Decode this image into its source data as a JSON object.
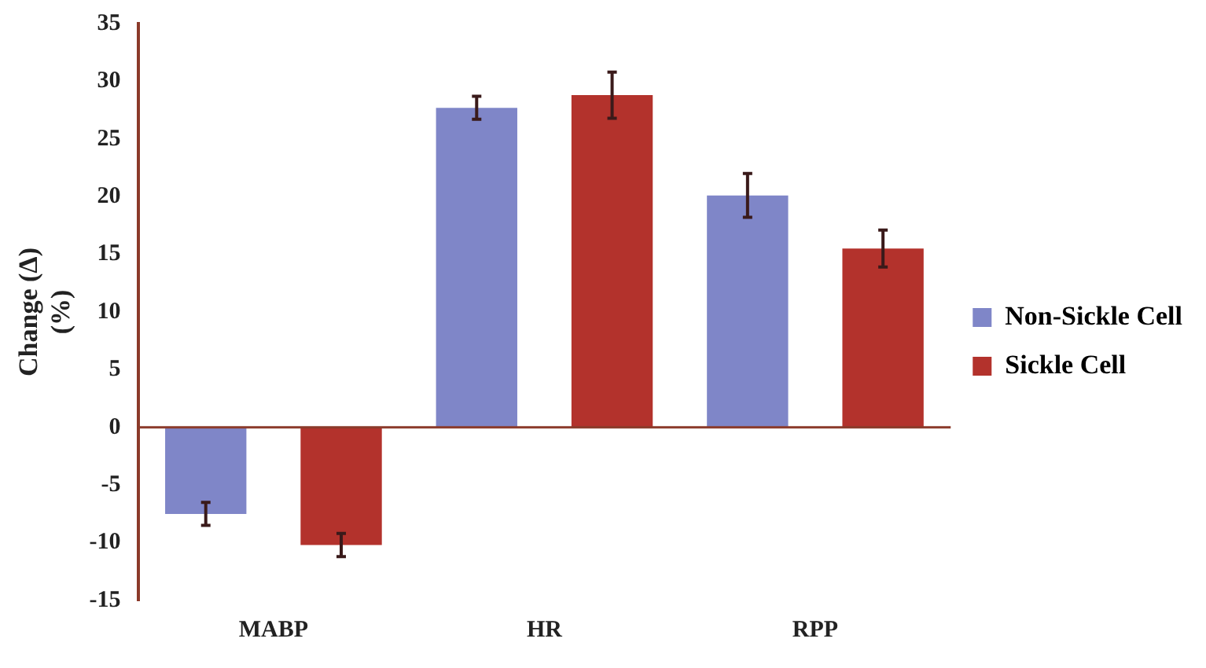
{
  "chart_data": {
    "type": "bar",
    "ylabel": "Change (Δ)\n(%)",
    "categories": [
      "MABP",
      "HR",
      "RPP"
    ],
    "series": [
      {
        "name": "Non-Sickle Cell",
        "color": "#7f86c8",
        "values": [
          -7.5,
          27.7,
          20.1
        ],
        "errors": [
          1.0,
          1.0,
          1.9
        ]
      },
      {
        "name": "Sickle Cell",
        "color": "#b3322c",
        "values": [
          -10.2,
          28.8,
          15.5
        ],
        "errors": [
          1.0,
          2.0,
          1.6
        ]
      }
    ],
    "ref_lines": [
      {
        "axis": "y",
        "value": 0,
        "color": "#8b3a2a"
      }
    ],
    "ylim": [
      -15,
      35
    ],
    "yticks": [
      -15,
      -10,
      -5,
      0,
      5,
      10,
      15,
      20,
      25,
      30,
      35
    ],
    "grid": false,
    "legend": "right"
  }
}
